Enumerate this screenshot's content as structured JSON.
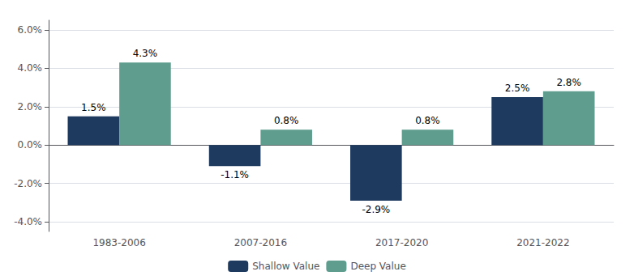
{
  "chart_data": {
    "type": "bar",
    "categories": [
      "1983-2006",
      "2007-2016",
      "2017-2020",
      "2021-2022"
    ],
    "series": [
      {
        "name": "Shallow Value",
        "color": "#1e3a5f",
        "values": [
          1.5,
          -1.1,
          -2.9,
          2.5
        ],
        "value_labels": [
          "1.5%",
          "-1.1%",
          "-2.9%",
          "2.5%"
        ]
      },
      {
        "name": "Deep Value",
        "color": "#5f9e8f",
        "values": [
          4.3,
          0.8,
          0.8,
          2.8
        ],
        "value_labels": [
          "4.3%",
          "0.8%",
          "0.8%",
          "2.8%"
        ]
      }
    ],
    "ylim": [
      -4.5,
      6.5
    ],
    "yticks": [
      {
        "value": -4.0,
        "label": "-4.0%"
      },
      {
        "value": -2.0,
        "label": "-2.0%"
      },
      {
        "value": 0.0,
        "label": "0.0%"
      },
      {
        "value": 2.0,
        "label": "2.0%"
      },
      {
        "value": 4.0,
        "label": "4.0%"
      },
      {
        "value": 6.0,
        "label": "6.0%"
      }
    ],
    "grid": true,
    "legend": "bottom",
    "data_labels": true
  }
}
